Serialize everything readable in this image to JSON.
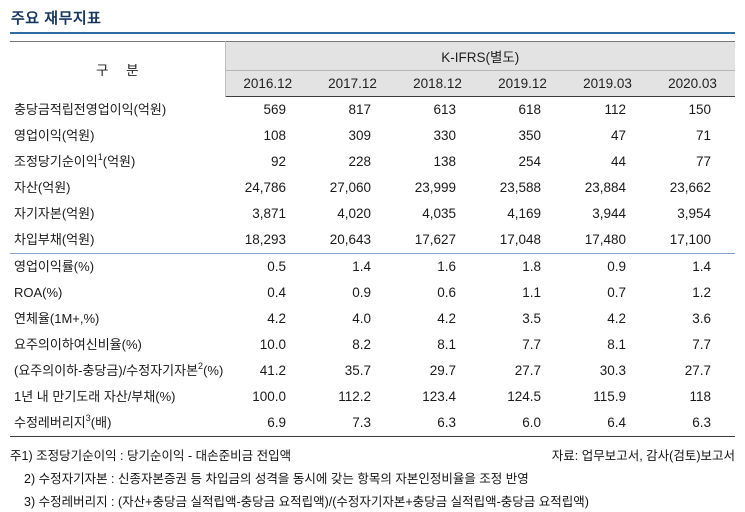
{
  "page": {
    "title": "주요 재무지표"
  },
  "colors": {
    "title": "#17365d",
    "rule": "#2e6da4",
    "header_bg": "#e3e3e3",
    "section_line": "#8aa6c8"
  },
  "table": {
    "corner_header": "구 분",
    "group_header": "K-IFRS(별도)",
    "columns": [
      "2016.12",
      "2017.12",
      "2018.12",
      "2019.12",
      "2019.03",
      "2020.03"
    ],
    "rows": [
      {
        "label_pre": "충당금적립전영업이익(억원)",
        "sup": "",
        "label_post": "",
        "section_start": false,
        "values": [
          "569",
          "817",
          "613",
          "618",
          "112",
          "150"
        ]
      },
      {
        "label_pre": "영업이익(억원)",
        "sup": "",
        "label_post": "",
        "section_start": false,
        "values": [
          "108",
          "309",
          "330",
          "350",
          "47",
          "71"
        ]
      },
      {
        "label_pre": "조정당기순이익",
        "sup": "1",
        "label_post": "(억원)",
        "section_start": false,
        "values": [
          "92",
          "228",
          "138",
          "254",
          "44",
          "77"
        ]
      },
      {
        "label_pre": "자산(억원)",
        "sup": "",
        "label_post": "",
        "section_start": false,
        "values": [
          "24,786",
          "27,060",
          "23,999",
          "23,588",
          "23,884",
          "23,662"
        ]
      },
      {
        "label_pre": "자기자본(억원)",
        "sup": "",
        "label_post": "",
        "section_start": false,
        "values": [
          "3,871",
          "4,020",
          "4,035",
          "4,169",
          "3,944",
          "3,954"
        ]
      },
      {
        "label_pre": "차입부채(억원)",
        "sup": "",
        "label_post": "",
        "section_start": false,
        "values": [
          "18,293",
          "20,643",
          "17,627",
          "17,048",
          "17,480",
          "17,100"
        ]
      },
      {
        "label_pre": "영업이익률(%)",
        "sup": "",
        "label_post": "",
        "section_start": true,
        "values": [
          "0.5",
          "1.4",
          "1.6",
          "1.8",
          "0.9",
          "1.4"
        ]
      },
      {
        "label_pre": "ROA(%)",
        "sup": "",
        "label_post": "",
        "section_start": false,
        "values": [
          "0.4",
          "0.9",
          "0.6",
          "1.1",
          "0.7",
          "1.2"
        ]
      },
      {
        "label_pre": "연체율(1M+,%)",
        "sup": "",
        "label_post": "",
        "section_start": false,
        "values": [
          "4.2",
          "4.0",
          "4.2",
          "3.5",
          "4.2",
          "3.6"
        ]
      },
      {
        "label_pre": "요주의이하여신비율(%)",
        "sup": "",
        "label_post": "",
        "section_start": false,
        "values": [
          "10.0",
          "8.2",
          "8.1",
          "7.7",
          "8.1",
          "7.7"
        ]
      },
      {
        "label_pre": "(요주의이하-충당금)/수정자기자본",
        "sup": "2",
        "label_post": "(%)",
        "section_start": false,
        "values": [
          "41.2",
          "35.7",
          "29.7",
          "27.7",
          "30.3",
          "27.7"
        ]
      },
      {
        "label_pre": "1년 내 만기도래 자산/부채(%)",
        "sup": "",
        "label_post": "",
        "section_start": false,
        "values": [
          "100.0",
          "112.2",
          "123.4",
          "124.5",
          "115.9",
          "118"
        ]
      },
      {
        "label_pre": "수정레버리지",
        "sup": "3",
        "label_post": "(배)",
        "section_start": false,
        "values": [
          "6.9",
          "7.3",
          "6.3",
          "6.0",
          "6.4",
          "6.3"
        ]
      }
    ]
  },
  "notes": {
    "source": "자료: 업무보고서, 감사(검토)보고서",
    "items": [
      "주1) 조정당기순이익 : 당기순이익 - 대손준비금 전입액",
      "2) 수정자기자본 : 신종자본증권 등 차입금의 성격을 동시에 갖는 항목의 자본인정비율을 조정 반영",
      "3) 수정레버리지 : (자산+충당금 실적립액-충당금 요적립액)/(수정자기자본+충당금 실적립액-충당금 요적립액)"
    ]
  }
}
